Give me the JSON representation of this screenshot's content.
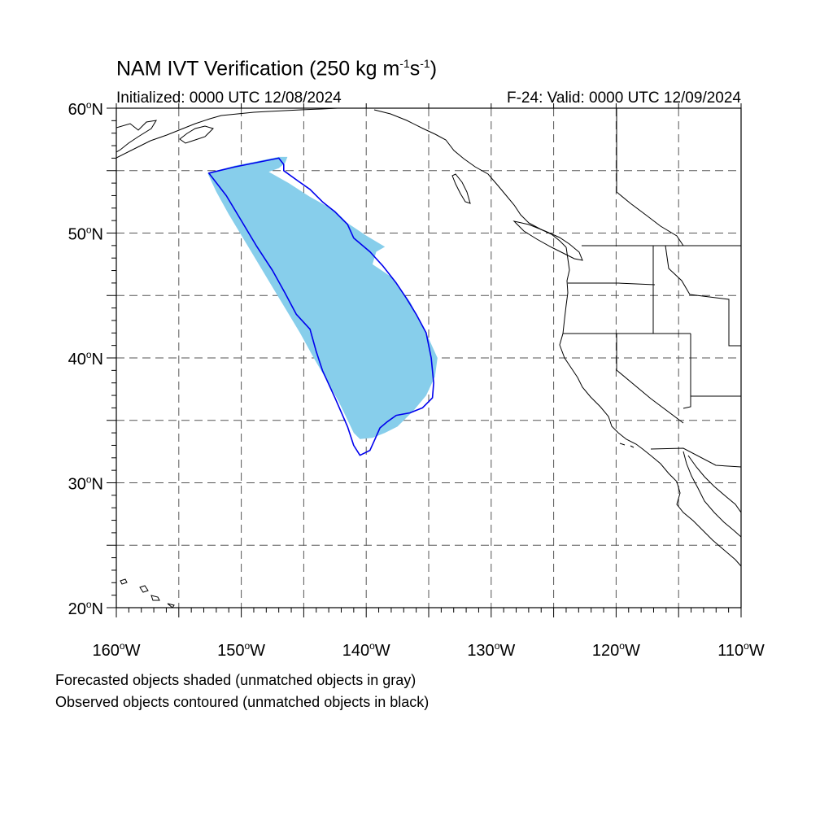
{
  "title": {
    "main_prefix": "NAM IVT Verification (250 kg m",
    "exp1": "-1",
    "mid": "s",
    "exp2": "-1",
    "suffix": ")"
  },
  "subtitle_left": "Initialized: 0000 UTC 12/08/2024",
  "subtitle_right": "F-24: Valid: 0000 UTC 12/09/2024",
  "notes": [
    "Forecasted objects shaded (unmatched objects in gray)",
    "Observed objects contoured (unmatched objects in black)"
  ],
  "axes": {
    "lon_min": -160,
    "lon_max": -110,
    "lat_min": 20,
    "lat_max": 60,
    "lat_labels": [
      {
        "lat": 60,
        "text": "60",
        "hemi": "N"
      },
      {
        "lat": 50,
        "text": "50",
        "hemi": "N"
      },
      {
        "lat": 40,
        "text": "40",
        "hemi": "N"
      },
      {
        "lat": 30,
        "text": "30",
        "hemi": "N"
      },
      {
        "lat": 20,
        "text": "20",
        "hemi": "N"
      }
    ],
    "lon_labels": [
      {
        "lon": -160,
        "text": "160",
        "hemi": "W"
      },
      {
        "lon": -150,
        "text": "150",
        "hemi": "W"
      },
      {
        "lon": -140,
        "text": "140",
        "hemi": "W"
      },
      {
        "lon": -130,
        "text": "130",
        "hemi": "W"
      },
      {
        "lon": -120,
        "text": "120",
        "hemi": "W"
      },
      {
        "lon": -110,
        "text": "110",
        "hemi": "W"
      }
    ],
    "grid_lats": [
      25,
      30,
      35,
      40,
      45,
      50,
      55
    ],
    "grid_lons": [
      -155,
      -150,
      -145,
      -140,
      -135,
      -130,
      -125,
      -120,
      -115
    ]
  },
  "colors": {
    "forecast_fill": "#87ceeb",
    "observed_contour": "#0000ee",
    "coast": "#000000",
    "grid": "#555555"
  },
  "forecast_object": [
    [
      -152.7,
      54.8
    ],
    [
      -150.5,
      55.4
    ],
    [
      -148.5,
      55.8
    ],
    [
      -147.0,
      56.1
    ],
    [
      -146.3,
      56.1
    ],
    [
      -146.5,
      55.6
    ],
    [
      -147.0,
      55.2
    ],
    [
      -147.8,
      54.9
    ],
    [
      -146.2,
      54.0
    ],
    [
      -144.5,
      52.9
    ],
    [
      -142.5,
      51.8
    ],
    [
      -141.5,
      50.8
    ],
    [
      -140.0,
      49.8
    ],
    [
      -138.5,
      48.9
    ],
    [
      -139.2,
      48.5
    ],
    [
      -139.5,
      47.5
    ],
    [
      -138.0,
      46.5
    ],
    [
      -136.5,
      44.5
    ],
    [
      -135.2,
      42.0
    ],
    [
      -134.3,
      40.0
    ],
    [
      -134.5,
      38.5
    ],
    [
      -135.2,
      37.0
    ],
    [
      -136.2,
      35.8
    ],
    [
      -137.5,
      34.5
    ],
    [
      -138.5,
      34.0
    ],
    [
      -139.5,
      33.6
    ],
    [
      -140.5,
      33.5
    ],
    [
      -141.0,
      34.0
    ],
    [
      -142.2,
      36.5
    ],
    [
      -143.5,
      38.8
    ],
    [
      -144.2,
      40.0
    ],
    [
      -145.3,
      42.0
    ],
    [
      -146.5,
      44.0
    ],
    [
      -148.0,
      46.5
    ],
    [
      -149.5,
      49.0
    ],
    [
      -151.0,
      51.5
    ],
    [
      -152.0,
      53.3
    ]
  ],
  "observed_object": [
    [
      -152.6,
      54.8
    ],
    [
      -150.5,
      55.3
    ],
    [
      -148.5,
      55.7
    ],
    [
      -147.0,
      56.0
    ],
    [
      -146.6,
      55.5
    ],
    [
      -146.6,
      55.0
    ],
    [
      -145.5,
      54.2
    ],
    [
      -144.5,
      53.5
    ],
    [
      -143.5,
      52.5
    ],
    [
      -142.5,
      51.7
    ],
    [
      -141.5,
      50.7
    ],
    [
      -141.0,
      49.6
    ],
    [
      -139.7,
      48.5
    ],
    [
      -138.7,
      47.4
    ],
    [
      -137.6,
      46.0
    ],
    [
      -136.8,
      44.8
    ],
    [
      -136.0,
      43.5
    ],
    [
      -135.2,
      42.0
    ],
    [
      -134.8,
      40.0
    ],
    [
      -134.6,
      38.0
    ],
    [
      -134.7,
      36.8
    ],
    [
      -135.5,
      36.0
    ],
    [
      -136.5,
      35.6
    ],
    [
      -137.6,
      35.4
    ],
    [
      -138.3,
      34.9
    ],
    [
      -138.9,
      34.4
    ],
    [
      -139.3,
      33.5
    ],
    [
      -139.7,
      32.6
    ],
    [
      -140.5,
      32.2
    ],
    [
      -141.0,
      33.0
    ],
    [
      -141.5,
      34.5
    ],
    [
      -142.5,
      36.8
    ],
    [
      -143.5,
      39.0
    ],
    [
      -144.0,
      40.5
    ],
    [
      -144.5,
      42.3
    ],
    [
      -145.6,
      43.5
    ],
    [
      -146.5,
      45.2
    ],
    [
      -147.5,
      47.0
    ],
    [
      -148.8,
      49.0
    ],
    [
      -150.0,
      51.0
    ],
    [
      -151.2,
      53.0
    ]
  ]
}
